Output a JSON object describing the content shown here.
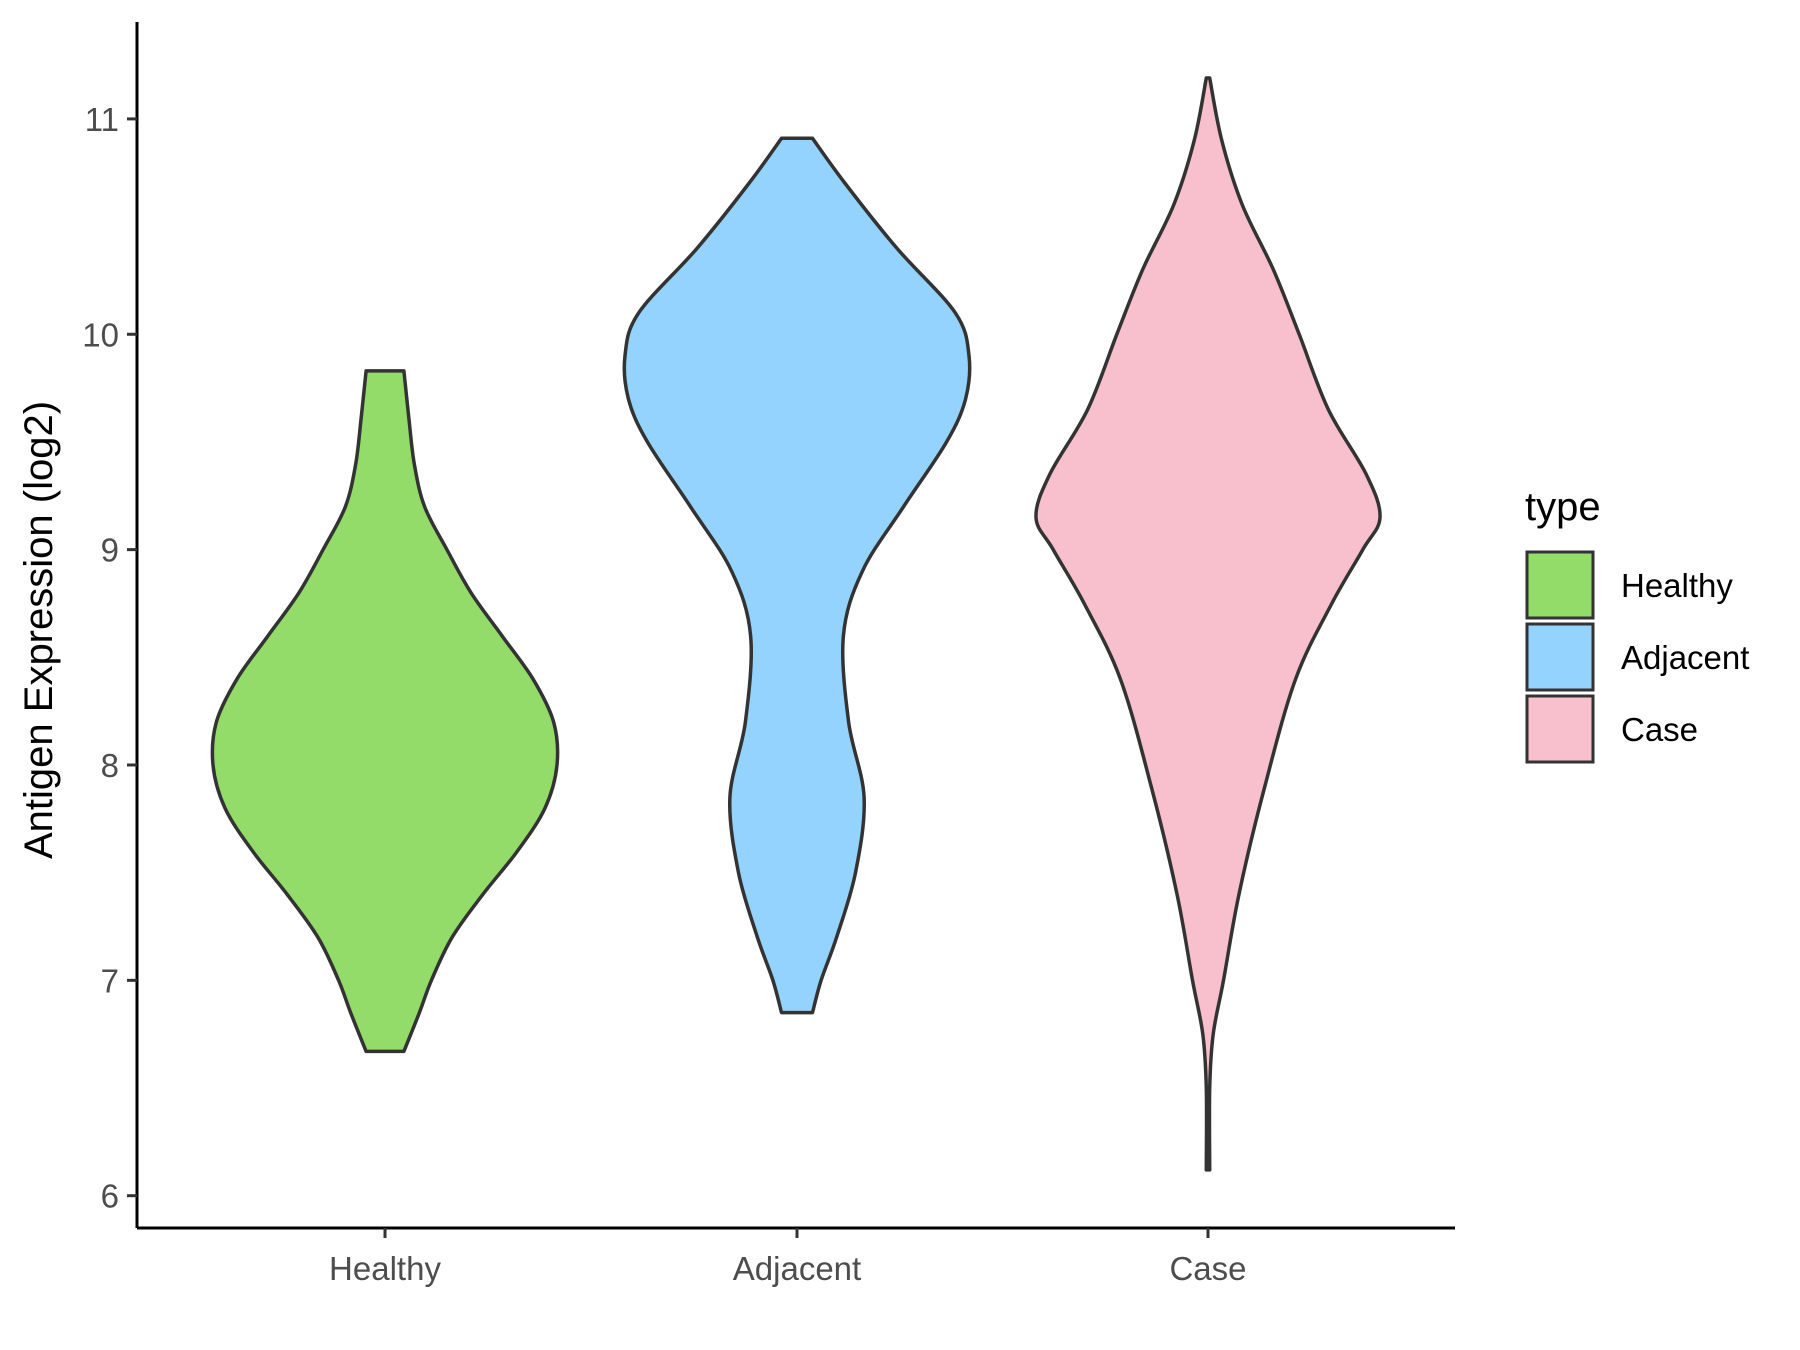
{
  "chart_data": {
    "type": "violin",
    "title": "",
    "xlabel": "",
    "ylabel": "Antigen Expression (log2)",
    "ylim": [
      5.85,
      11.45
    ],
    "yticks": [
      6,
      7,
      8,
      9,
      10,
      11
    ],
    "categories": [
      "Healthy",
      "Adjacent",
      "Case"
    ],
    "grid": false,
    "legend": {
      "title": "type",
      "placement": "right",
      "items": [
        "Healthy",
        "Adjacent",
        "Case"
      ]
    },
    "series": [
      {
        "category": "Healthy",
        "color": "#93DC6A",
        "min": 6.67,
        "max": 9.83,
        "density_profile": [
          [
            6.67,
            0.11
          ],
          [
            6.85,
            0.2
          ],
          [
            7.0,
            0.27
          ],
          [
            7.2,
            0.39
          ],
          [
            7.4,
            0.57
          ],
          [
            7.6,
            0.77
          ],
          [
            7.8,
            0.93
          ],
          [
            8.0,
            1.0
          ],
          [
            8.2,
            0.98
          ],
          [
            8.4,
            0.86
          ],
          [
            8.6,
            0.68
          ],
          [
            8.8,
            0.5
          ],
          [
            9.0,
            0.36
          ],
          [
            9.2,
            0.23
          ],
          [
            9.4,
            0.17
          ],
          [
            9.6,
            0.14
          ],
          [
            9.83,
            0.11
          ]
        ]
      },
      {
        "category": "Adjacent",
        "color": "#93D3FD",
        "min": 6.85,
        "max": 10.91,
        "density_profile": [
          [
            6.85,
            0.09
          ],
          [
            7.0,
            0.14
          ],
          [
            7.2,
            0.23
          ],
          [
            7.5,
            0.34
          ],
          [
            7.85,
            0.39
          ],
          [
            8.2,
            0.3
          ],
          [
            8.6,
            0.27
          ],
          [
            8.9,
            0.38
          ],
          [
            9.2,
            0.62
          ],
          [
            9.5,
            0.87
          ],
          [
            9.7,
            0.98
          ],
          [
            9.9,
            1.0
          ],
          [
            10.1,
            0.92
          ],
          [
            10.4,
            0.58
          ],
          [
            10.7,
            0.28
          ],
          [
            10.91,
            0.09
          ]
        ]
      },
      {
        "category": "Case",
        "color": "#F7C0CC",
        "min": 6.12,
        "max": 11.19,
        "density_profile": [
          [
            6.12,
            0.01
          ],
          [
            6.5,
            0.01
          ],
          [
            6.75,
            0.03
          ],
          [
            7.0,
            0.09
          ],
          [
            7.4,
            0.18
          ],
          [
            7.9,
            0.33
          ],
          [
            8.4,
            0.51
          ],
          [
            8.75,
            0.72
          ],
          [
            9.0,
            0.9
          ],
          [
            9.15,
            1.0
          ],
          [
            9.35,
            0.92
          ],
          [
            9.65,
            0.7
          ],
          [
            10.0,
            0.53
          ],
          [
            10.3,
            0.38
          ],
          [
            10.6,
            0.2
          ],
          [
            10.9,
            0.08
          ],
          [
            11.19,
            0.01
          ]
        ]
      }
    ]
  }
}
